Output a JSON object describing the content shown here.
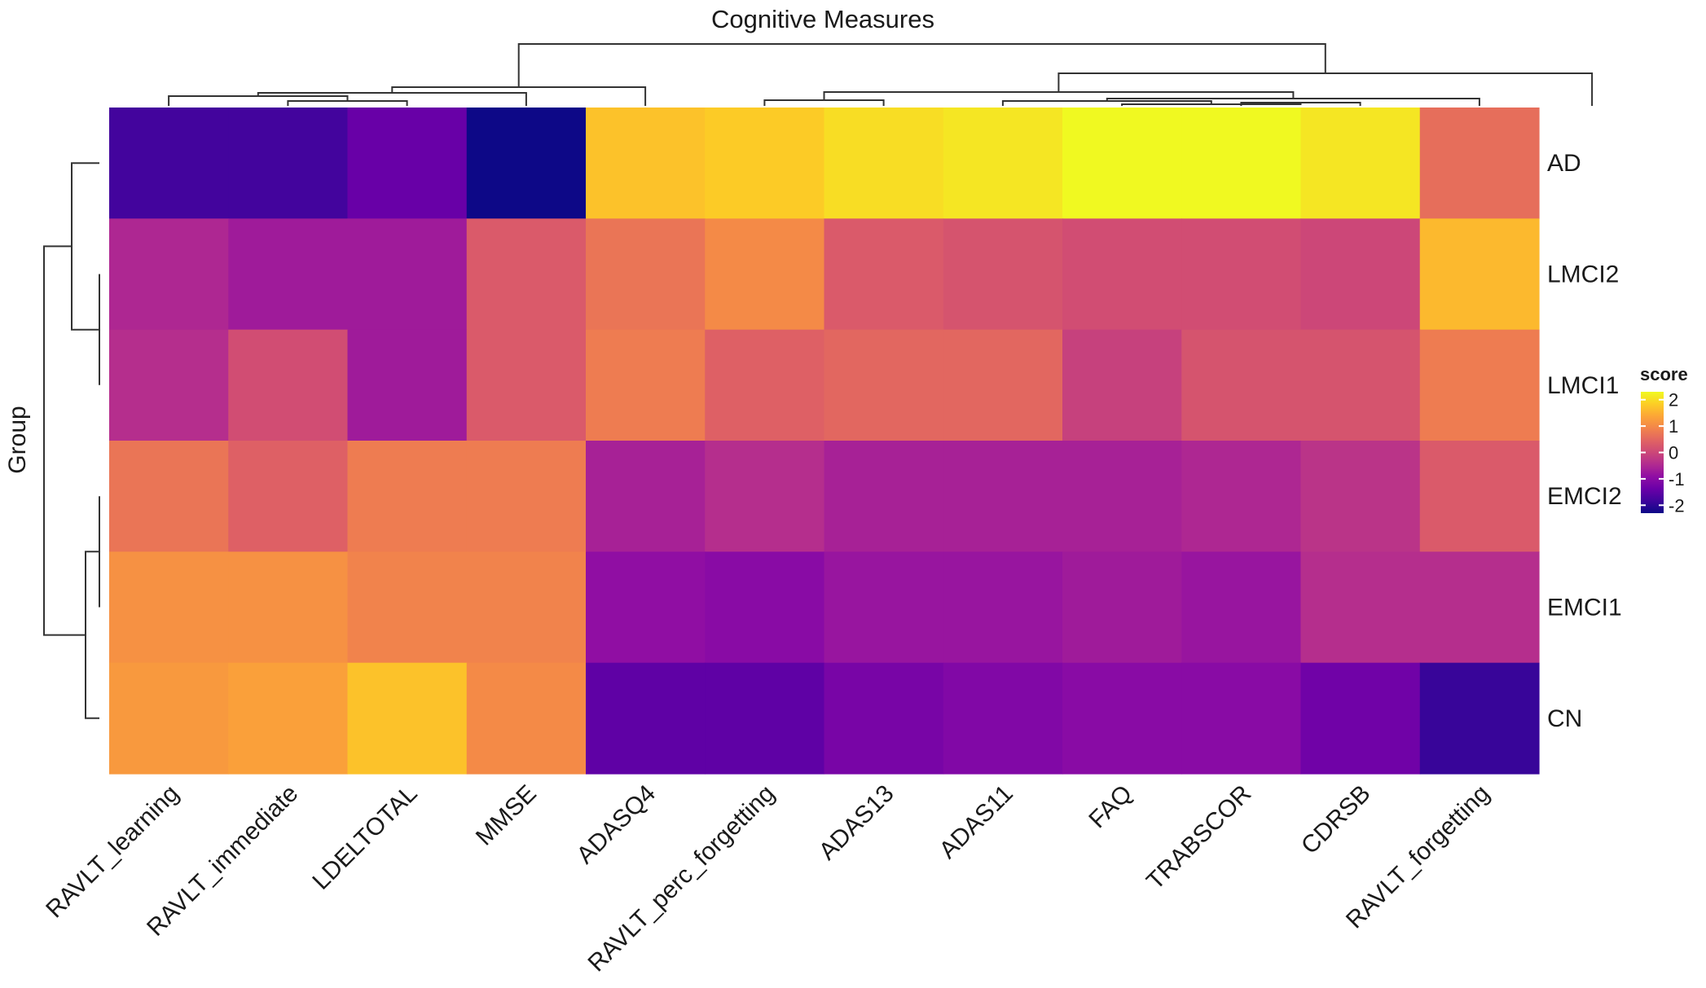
{
  "chart_data": {
    "type": "heatmap",
    "title": "Cognitive Measures",
    "row_axis_label": "Group",
    "columns": [
      "RAVLT_learning",
      "RAVLT_immediate",
      "LDELTOTAL",
      "MMSE",
      "ADASQ4",
      "RAVLT_perc_forgetting",
      "ADAS13",
      "ADAS11",
      "FAQ",
      "TRABSCOR",
      "CDRSB",
      "RAVLT_forgetting"
    ],
    "rows": [
      "AD",
      "LMCI2",
      "LMCI1",
      "EMCI2",
      "EMCI1",
      "CN"
    ],
    "values": [
      [
        -1.8,
        -1.8,
        -1.4,
        -2.3,
        1.7,
        1.8,
        2.0,
        2.1,
        2.3,
        2.3,
        2.1,
        0.6
      ],
      [
        -0.5,
        -0.7,
        -0.7,
        0.3,
        0.7,
        1.0,
        0.3,
        0.2,
        0.1,
        0.1,
        0.0,
        1.6
      ],
      [
        -0.4,
        0.1,
        -0.7,
        0.3,
        0.8,
        0.4,
        0.5,
        0.5,
        -0.1,
        0.2,
        0.2,
        0.8
      ],
      [
        0.7,
        0.4,
        0.8,
        0.8,
        -0.6,
        -0.4,
        -0.6,
        -0.6,
        -0.6,
        -0.5,
        -0.3,
        0.3
      ],
      [
        1.1,
        1.1,
        0.9,
        0.9,
        -0.9,
        -1.0,
        -0.8,
        -0.8,
        -0.7,
        -0.8,
        -0.4,
        -0.4
      ],
      [
        1.2,
        1.3,
        1.7,
        1.0,
        -1.5,
        -1.5,
        -1.2,
        -1.1,
        -1.0,
        -1.0,
        -1.3,
        -1.9
      ]
    ],
    "legend": {
      "title": "score",
      "ticks": [
        2,
        1,
        0,
        -1,
        -2
      ],
      "range": [
        -2.3,
        2.3
      ],
      "colors": [
        "#0d0887",
        "#3f049c",
        "#6a00a8",
        "#8f0da4",
        "#b12a90",
        "#cc4778",
        "#e16462",
        "#f2844b",
        "#fca636",
        "#fcce25",
        "#f0f921"
      ]
    },
    "grid": false,
    "legend_position": "right"
  }
}
